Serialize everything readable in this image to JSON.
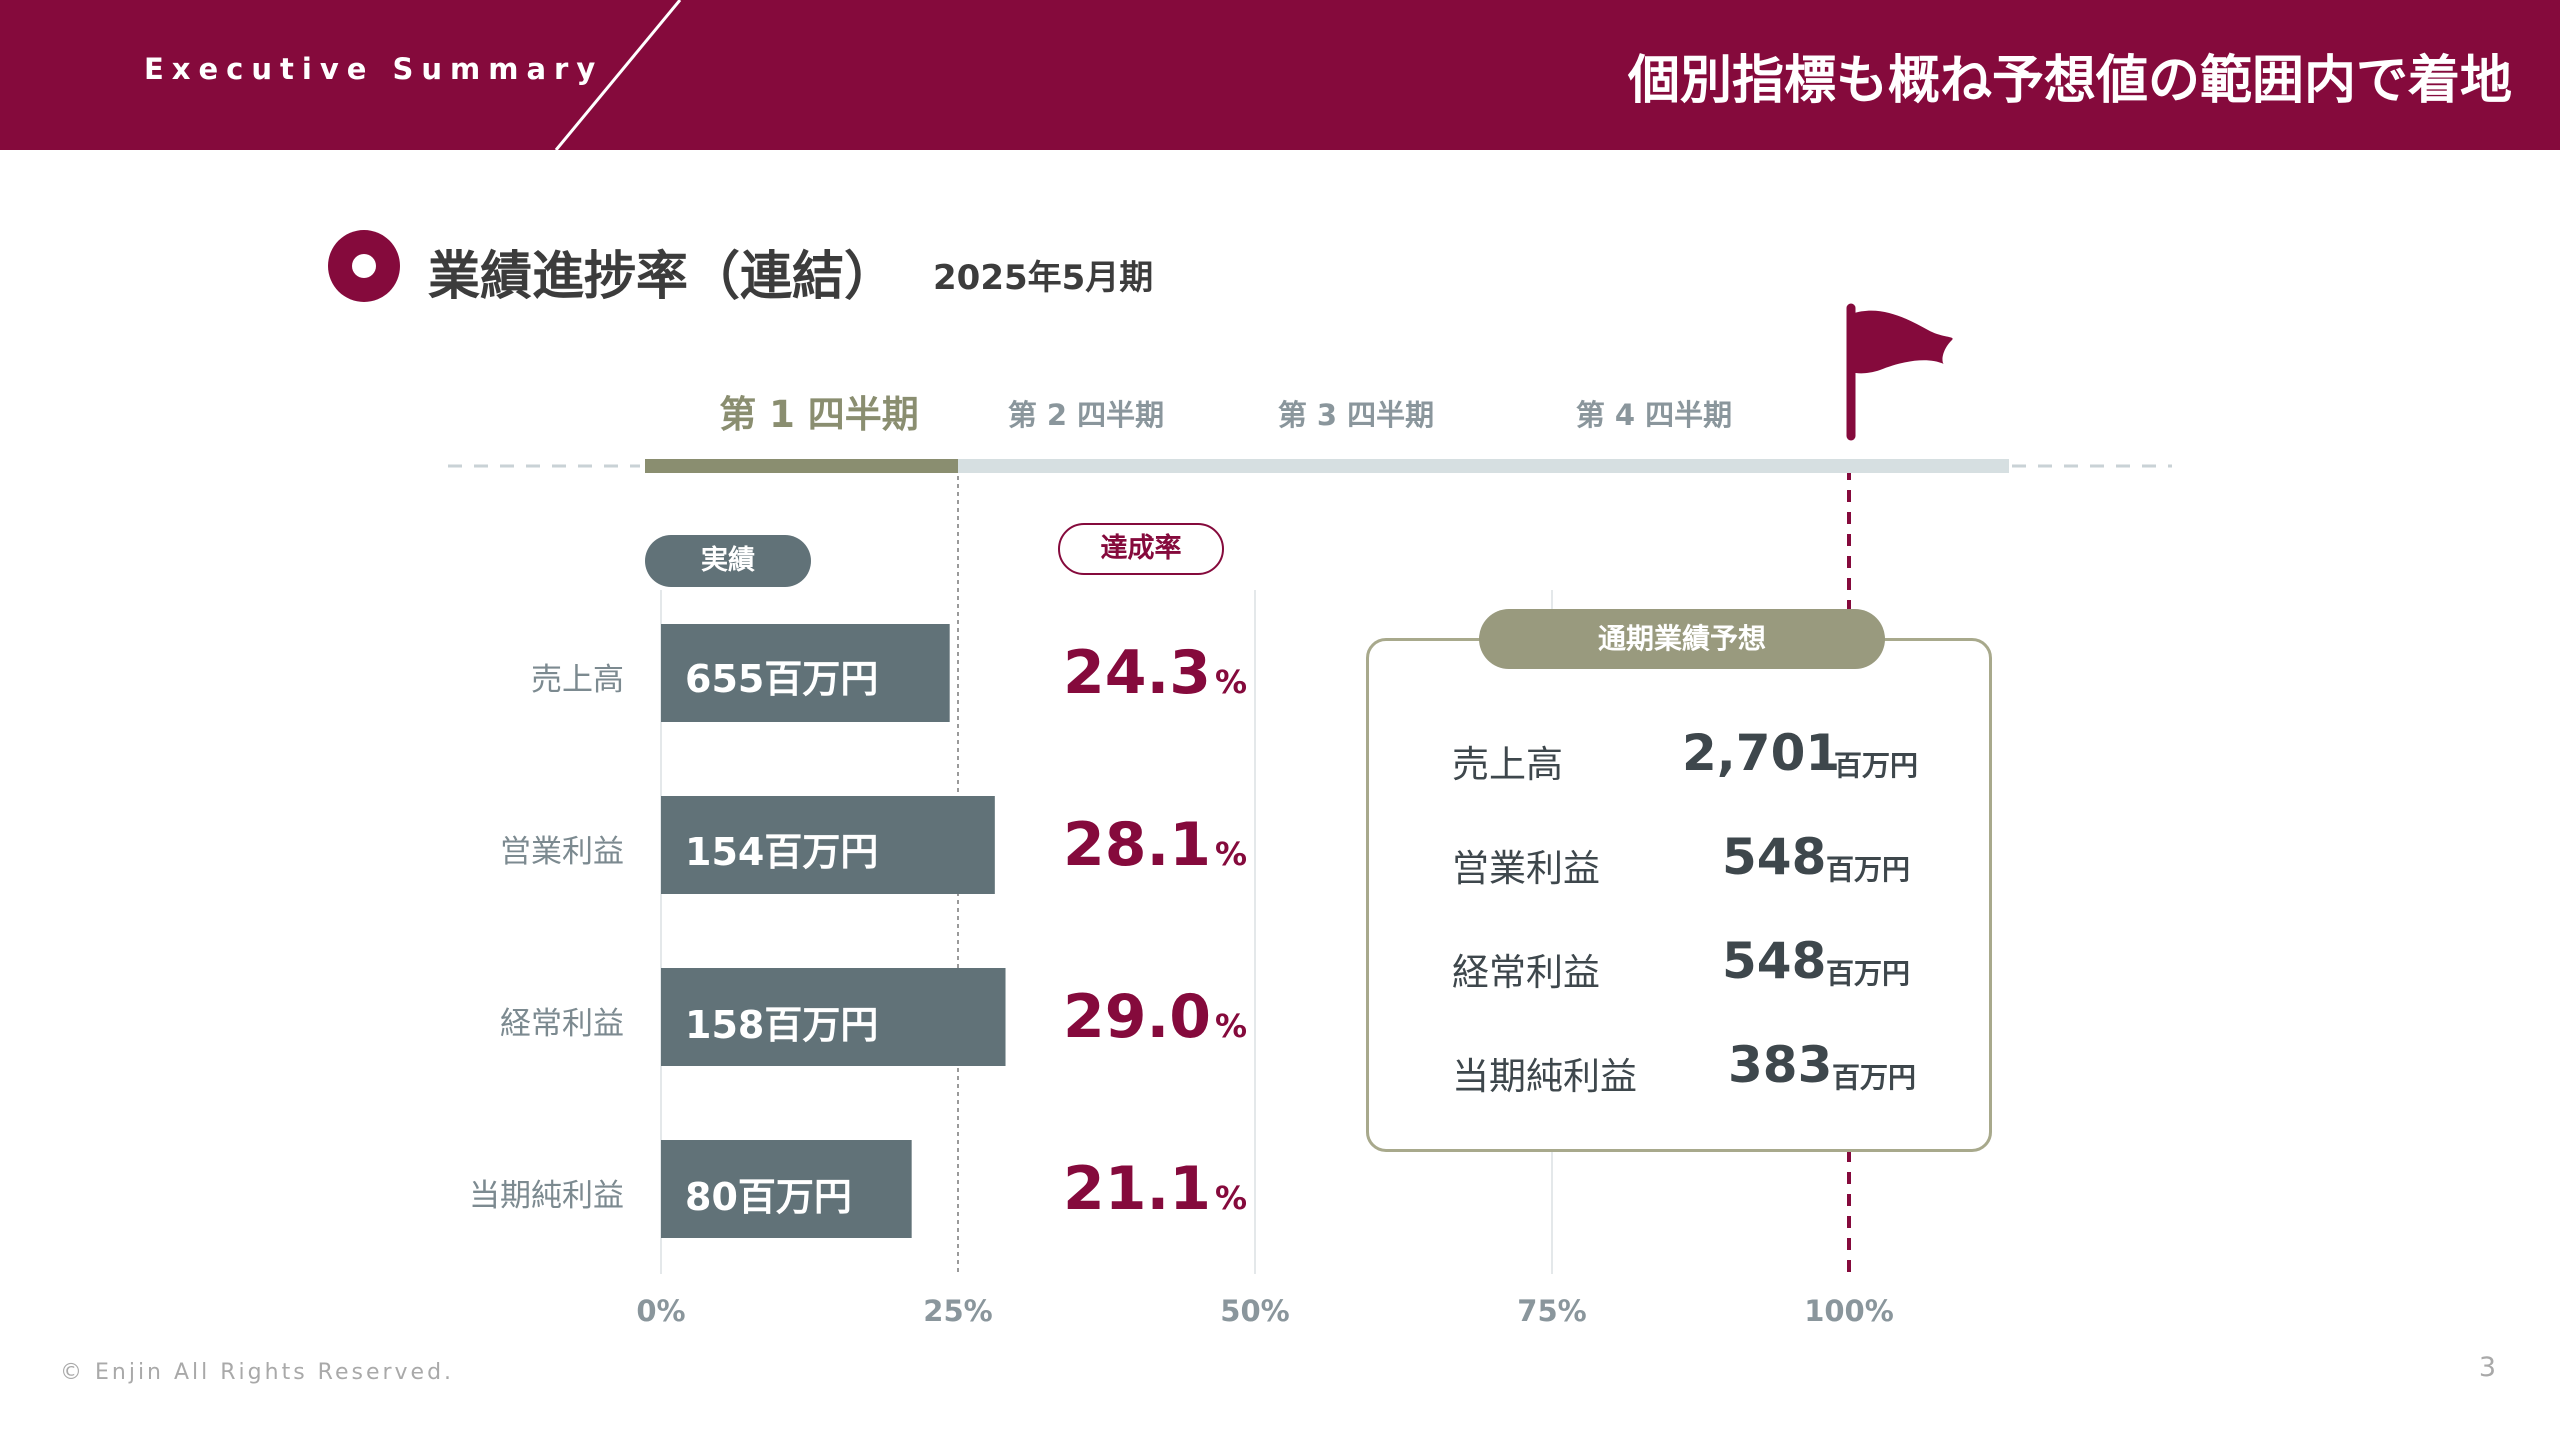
{
  "header": {
    "section_label": "Executive Summary",
    "headline": "個別指標も概ね予想値の範囲内で着地"
  },
  "section": {
    "title": "業績進捗率（連結）",
    "subtitle": "2025年5月期"
  },
  "quarters": [
    {
      "label": "第 1 四半期",
      "active": true
    },
    {
      "label": "第 2 四半期",
      "active": false
    },
    {
      "label": "第 3 四半期",
      "active": false
    },
    {
      "label": "第 4 四半期",
      "active": false
    }
  ],
  "pills": {
    "actual": "実績",
    "rate": "達成率"
  },
  "chart_data": {
    "type": "bar",
    "orientation": "horizontal",
    "categories": [
      "売上高",
      "営業利益",
      "経常利益",
      "当期純利益"
    ],
    "values": [
      24.3,
      28.1,
      29.0,
      21.1
    ],
    "bar_labels": [
      "655百万円",
      "154百万円",
      "158百万円",
      "80百万円"
    ],
    "rate_labels": [
      "24.3",
      "28.1",
      "29.0",
      "21.1"
    ],
    "rate_unit": "%",
    "xlim": [
      0,
      100
    ],
    "xticks": [
      "0%",
      "25%",
      "50%",
      "75%",
      "100%"
    ],
    "xtick_values": [
      0,
      25,
      50,
      75,
      100
    ],
    "quarter_progress": 25,
    "target": 100,
    "colors": {
      "bar": "#617278",
      "rate": "#850A3C",
      "progress": "#8A8E70",
      "track": "#D6DFE1",
      "flag": "#850A3C"
    }
  },
  "forecast": {
    "title": "通期業績予想",
    "items": [
      {
        "label": "売上高",
        "value": "2,701",
        "unit": "百万円"
      },
      {
        "label": "営業利益",
        "value": "548",
        "unit": "百万円"
      },
      {
        "label": "経常利益",
        "value": "548",
        "unit": "百万円"
      },
      {
        "label": "当期純利益",
        "value": "383",
        "unit": "百万円"
      }
    ]
  },
  "footer": {
    "copyright": "© Enjin All Rights Reserved.",
    "page_number": "3"
  }
}
